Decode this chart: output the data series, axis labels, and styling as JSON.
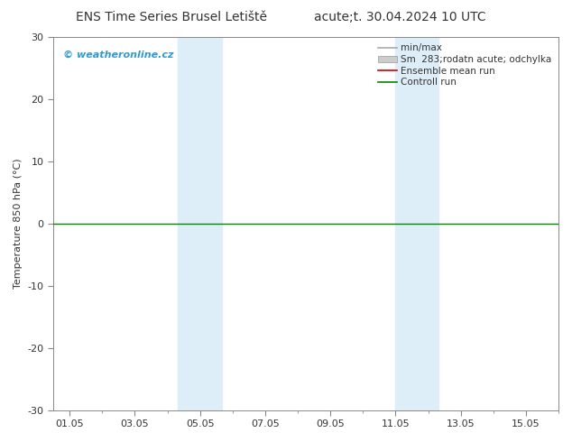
{
  "title_left": "ENS Time Series Brusel Letiště",
  "title_right": "acute;t. 30.04.2024 10 UTC",
  "ylabel": "Temperature 850 hPa (°C)",
  "ylim": [
    -30,
    30
  ],
  "yticks": [
    -30,
    -20,
    -10,
    0,
    10,
    20,
    30
  ],
  "xtick_labels": [
    "01.05",
    "03.05",
    "05.05",
    "07.05",
    "09.05",
    "11.05",
    "13.05",
    "15.05"
  ],
  "xtick_positions": [
    0,
    2,
    4,
    6,
    8,
    10,
    12,
    14
  ],
  "shade_bands": [
    {
      "xmin": 3.33,
      "xmax": 3.99
    },
    {
      "xmin": 4.01,
      "xmax": 4.67
    },
    {
      "xmin": 10.0,
      "xmax": 10.67
    },
    {
      "xmin": 10.69,
      "xmax": 11.33
    }
  ],
  "shade_color": "#ddeef8",
  "watermark": "© weatheronline.cz",
  "watermark_color": "#3399cc",
  "legend_entries": [
    {
      "label": "min/max",
      "color": "#aaaaaa",
      "lw": 1.2,
      "ls": "-",
      "type": "line"
    },
    {
      "label": "Sm  283;rodatn acute; odchylka",
      "color": "#cccccc",
      "type": "patch"
    },
    {
      "label": "Ensemble mean run",
      "color": "#cc0000",
      "lw": 1.2,
      "ls": "-",
      "type": "line"
    },
    {
      "label": "Controll run",
      "color": "#008800",
      "lw": 1.2,
      "ls": "-",
      "type": "line"
    }
  ],
  "control_run_color": "#008800",
  "control_run_y": 0.0,
  "background_color": "#ffffff",
  "spine_color": "#888888",
  "xmin": -0.5,
  "xmax": 15.0
}
